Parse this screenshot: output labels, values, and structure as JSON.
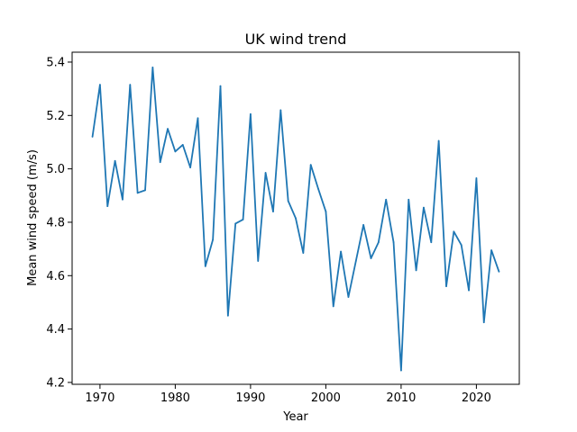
{
  "chart_data": {
    "type": "line",
    "title": "UK wind trend",
    "xlabel": "Year",
    "ylabel": "Mean wind speed (m/s)",
    "xlim": [
      1966.3,
      2025.7
    ],
    "ylim": [
      4.193,
      5.437
    ],
    "grid": false,
    "x_ticks": [
      1970,
      1980,
      1990,
      2000,
      2010,
      2020
    ],
    "x_tick_labels": [
      "1970",
      "1980",
      "1990",
      "2000",
      "2010",
      "2020"
    ],
    "y_ticks": [
      4.2,
      4.4,
      4.6,
      4.8,
      5.0,
      5.2,
      5.4
    ],
    "y_tick_labels": [
      "4.2",
      "4.4",
      "4.6",
      "4.8",
      "5.0",
      "5.2",
      "5.4"
    ],
    "line_color": "#1f77b4",
    "series": [
      {
        "x": [
          1969,
          1970,
          1971,
          1972,
          1973,
          1974,
          1975,
          1976,
          1977,
          1978,
          1979,
          1980,
          1981,
          1982,
          1983,
          1984,
          1985,
          1986,
          1987,
          1988,
          1989,
          1990,
          1991,
          1992,
          1993,
          1994,
          1995,
          1996,
          1997,
          1998,
          1999,
          2000,
          2001,
          2002,
          2003,
          2004,
          2005,
          2006,
          2007,
          2008,
          2009,
          2010,
          2011,
          2012,
          2013,
          2014,
          2015,
          2016,
          2017,
          2018,
          2019,
          2020,
          2021,
          2022,
          2023
        ],
        "values": [
          5.12,
          5.315,
          4.86,
          5.03,
          4.885,
          5.315,
          4.91,
          4.92,
          5.38,
          5.025,
          5.15,
          5.065,
          5.09,
          5.005,
          5.19,
          4.635,
          4.735,
          5.31,
          4.45,
          4.795,
          4.81,
          5.205,
          4.655,
          4.985,
          4.84,
          5.22,
          4.88,
          4.815,
          4.685,
          5.015,
          4.925,
          4.84,
          4.485,
          4.69,
          4.52,
          4.655,
          4.79,
          4.665,
          4.725,
          4.885,
          4.725,
          4.245,
          4.885,
          4.62,
          4.855,
          4.725,
          5.105,
          4.56,
          4.765,
          4.715,
          4.545,
          4.965,
          4.425,
          4.695,
          4.615
        ]
      }
    ]
  }
}
